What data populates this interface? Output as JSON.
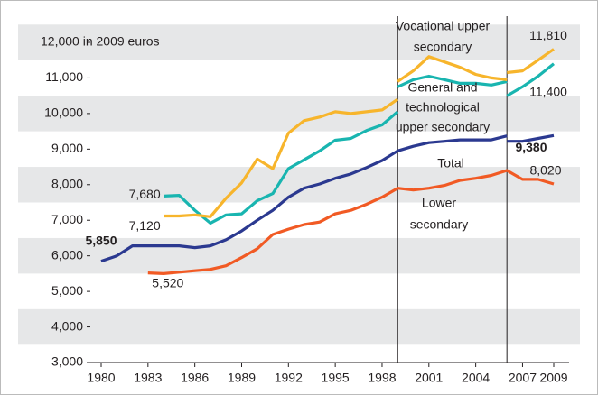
{
  "chart_data": {
    "type": "line",
    "xlim": [
      1980,
      2009
    ],
    "xticks": [
      1980,
      1983,
      1986,
      1989,
      1992,
      1995,
      1998,
      2001,
      2004,
      2007,
      2009
    ],
    "ylim": [
      3000,
      12000
    ],
    "yticks": [
      {
        "value": 3000,
        "label": "3,000"
      },
      {
        "value": 4000,
        "label": "4,000"
      },
      {
        "value": 5000,
        "label": "5,000"
      },
      {
        "value": 6000,
        "label": "6,000"
      },
      {
        "value": 7000,
        "label": "7,000"
      },
      {
        "value": 8000,
        "label": "8,000"
      },
      {
        "value": 9000,
        "label": "9,000"
      },
      {
        "value": 10000,
        "label": "10,000"
      },
      {
        "value": 11000,
        "label": "11,000"
      },
      {
        "value": 12000,
        "label": "12,000 in 2009 euros"
      }
    ],
    "breaks": [
      1999,
      2006
    ],
    "annotations": [
      {
        "lines": [
          "Vocational upper",
          "secondary"
        ]
      },
      {
        "lines": [
          "General and",
          "technological",
          "upper secondary"
        ]
      },
      {
        "lines": [
          "Total"
        ]
      },
      {
        "lines": [
          "Lower",
          "secondary"
        ]
      }
    ],
    "series": [
      {
        "name": "Total",
        "color": "#2b3990",
        "x": [
          1980,
          1981,
          1982,
          1983,
          1984,
          1985,
          1986,
          1987,
          1988,
          1989,
          1990,
          1991,
          1992,
          1993,
          1994,
          1995,
          1996,
          1997,
          1998,
          1999,
          2000,
          2001,
          2002,
          2003,
          2004,
          2005,
          2006,
          2006,
          2006,
          2007,
          2008,
          2009
        ],
        "values": [
          5850,
          6000,
          6280,
          6280,
          6280,
          6280,
          6230,
          6280,
          6450,
          6700,
          7000,
          7280,
          7650,
          7900,
          8020,
          8180,
          8300,
          8480,
          8680,
          8950,
          9080,
          9180,
          9220,
          9260,
          9260,
          9260,
          9370,
          null,
          9220,
          9220,
          9300,
          9380
        ],
        "value_labels": [
          "5,850",
          null,
          null,
          null,
          null,
          null,
          null,
          null,
          null,
          null,
          null,
          null,
          null,
          null,
          null,
          null,
          null,
          null,
          null,
          null,
          null,
          null,
          null,
          null,
          null,
          null,
          null,
          null,
          null,
          null,
          null,
          "9,380"
        ]
      },
      {
        "name": "Lower secondary",
        "color": "#f15a24",
        "x": [
          1983,
          1984,
          1985,
          1986,
          1987,
          1988,
          1989,
          1990,
          1991,
          1992,
          1993,
          1994,
          1995,
          1996,
          1997,
          1998,
          1999,
          2000,
          2001,
          2002,
          2003,
          2004,
          2005,
          2006,
          2007,
          2008,
          2009
        ],
        "values": [
          5520,
          5500,
          5540,
          5580,
          5620,
          5720,
          5950,
          6200,
          6600,
          6750,
          6880,
          6950,
          7180,
          7280,
          7450,
          7650,
          7900,
          7850,
          7900,
          7980,
          8120,
          8180,
          8260,
          8400,
          8150,
          8150,
          8020
        ],
        "value_labels": [
          "5,520",
          null,
          null,
          null,
          null,
          null,
          null,
          null,
          null,
          null,
          null,
          null,
          null,
          null,
          null,
          null,
          null,
          null,
          null,
          null,
          null,
          null,
          null,
          null,
          null,
          null,
          "8,020"
        ]
      },
      {
        "name": "General and technological upper secondary",
        "color": "#19b5b0",
        "x": [
          1984,
          1985,
          1986,
          1987,
          1988,
          1989,
          1990,
          1991,
          1992,
          1993,
          1994,
          1995,
          1996,
          1997,
          1998,
          1999,
          1999,
          1999,
          2000,
          2001,
          2002,
          2003,
          2004,
          2005,
          2006,
          2006,
          2006,
          2007,
          2008,
          2009
        ],
        "values": [
          7680,
          7700,
          7280,
          6920,
          7150,
          7180,
          7550,
          7750,
          8450,
          8700,
          8950,
          9250,
          9300,
          9520,
          9680,
          10050,
          null,
          10750,
          10950,
          11050,
          10950,
          10850,
          10850,
          10800,
          10900,
          null,
          10500,
          10750,
          11050,
          11400
        ],
        "value_labels": [
          "7,680",
          null,
          null,
          null,
          null,
          null,
          null,
          null,
          null,
          null,
          null,
          null,
          null,
          null,
          null,
          null,
          null,
          null,
          null,
          null,
          null,
          null,
          null,
          null,
          null,
          null,
          null,
          null,
          null,
          "11,400"
        ]
      },
      {
        "name": "Vocational upper secondary",
        "color": "#f7b52c",
        "x": [
          1984,
          1985,
          1986,
          1987,
          1988,
          1989,
          1990,
          1991,
          1992,
          1993,
          1994,
          1995,
          1996,
          1997,
          1998,
          1999,
          1999,
          1999,
          2000,
          2001,
          2002,
          2003,
          2004,
          2005,
          2006,
          2006,
          2006,
          2007,
          2008,
          2009
        ],
        "values": [
          7120,
          7120,
          7150,
          7100,
          7620,
          8050,
          8720,
          8450,
          9450,
          9800,
          9900,
          10050,
          10000,
          10050,
          10100,
          10400,
          null,
          10900,
          11200,
          11600,
          11450,
          11300,
          11100,
          11000,
          10950,
          null,
          11150,
          11200,
          11500,
          11810
        ],
        "value_labels": [
          "7,120",
          null,
          null,
          null,
          null,
          null,
          null,
          null,
          null,
          null,
          null,
          null,
          null,
          null,
          null,
          null,
          null,
          null,
          null,
          null,
          null,
          null,
          null,
          null,
          null,
          null,
          null,
          null,
          null,
          "11,810"
        ]
      }
    ]
  }
}
